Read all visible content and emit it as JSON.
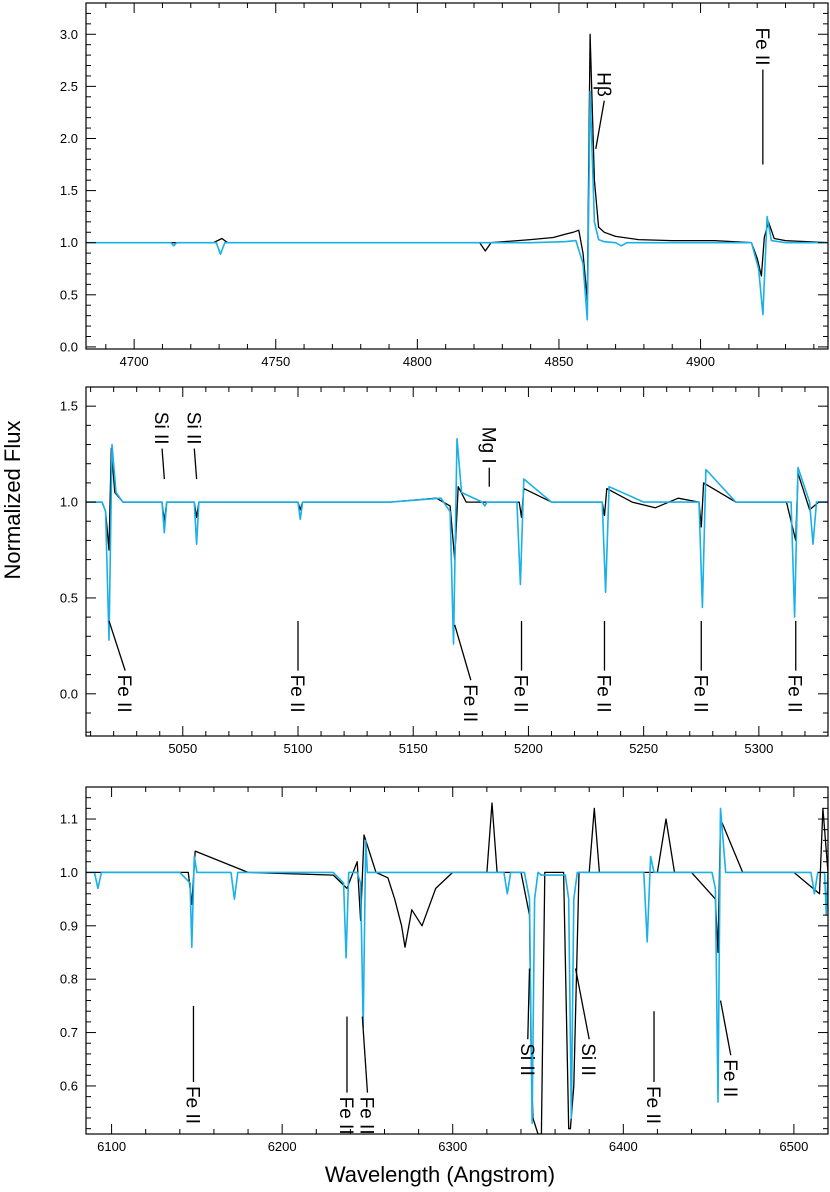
{
  "figure": {
    "ylabel": "Normalized Flux",
    "xlabel": "Wavelength (Angstrom)",
    "colors": {
      "observed": "#000000",
      "model": "#1ab0e8",
      "axes": "#000000"
    }
  },
  "chart_data": [
    {
      "type": "line",
      "panel": "top",
      "xlim": [
        4683,
        4945
      ],
      "ylim": [
        -0.02,
        3.3
      ],
      "x_ticks": [
        4700,
        4750,
        4800,
        4850,
        4900
      ],
      "y_ticks": [
        0.0,
        0.5,
        1.0,
        1.5,
        2.0,
        2.5,
        3.0
      ],
      "y_tick_labels": [
        "0.0",
        "0.5",
        "1.0",
        "1.5",
        "2.0",
        "2.5",
        "3.0"
      ],
      "series": [
        {
          "role": "observed",
          "color": "#000000",
          "x": [
            4683,
            4700,
            4728,
            4731,
            4733,
            4760,
            4800,
            4822,
            4824,
            4826,
            4840,
            4848,
            4852,
            4855,
            4857,
            4858.5,
            4860,
            4861,
            4862.5,
            4864,
            4866,
            4870,
            4878,
            4890,
            4905,
            4918,
            4920,
            4921.5,
            4922.5,
            4924,
            4926,
            4930,
            4945
          ],
          "y": [
            1.0,
            1.0,
            1.0,
            1.04,
            1.0,
            1.0,
            1.0,
            1.0,
            0.92,
            1.0,
            1.03,
            1.05,
            1.08,
            1.1,
            1.12,
            0.9,
            0.45,
            3.0,
            1.6,
            1.15,
            1.1,
            1.06,
            1.03,
            1.02,
            1.02,
            1.0,
            0.85,
            0.68,
            1.05,
            1.2,
            1.04,
            1.02,
            1.0
          ]
        },
        {
          "role": "model",
          "color": "#1ab0e8",
          "x": [
            4683,
            4700,
            4713,
            4714,
            4715,
            4729,
            4730.5,
            4732,
            4760,
            4800,
            4840,
            4852,
            4856,
            4858.5,
            4860,
            4861,
            4862.5,
            4864,
            4866,
            4870,
            4872,
            4874,
            4890,
            4918,
            4920.5,
            4922,
            4923.5,
            4925,
            4930,
            4945
          ],
          "y": [
            1.0,
            1.0,
            1.0,
            0.97,
            1.0,
            1.0,
            0.89,
            1.0,
            1.0,
            1.0,
            1.0,
            1.01,
            1.02,
            0.8,
            0.26,
            2.45,
            1.2,
            1.03,
            1.01,
            1.0,
            0.97,
            1.0,
            1.0,
            1.0,
            0.75,
            0.31,
            1.25,
            1.02,
            1.0,
            1.0
          ]
        }
      ],
      "annotations": [
        {
          "label": "Hβ",
          "x": 4866,
          "y": 2.4,
          "leader_to": [
            4863,
            1.9
          ]
        },
        {
          "label": "Fe II",
          "x": 4922,
          "y": 2.7,
          "leader_to": [
            4922,
            1.75
          ]
        }
      ]
    },
    {
      "type": "line",
      "panel": "middle",
      "xlim": [
        5008,
        5330
      ],
      "ylim": [
        -0.22,
        1.6
      ],
      "x_ticks": [
        5050,
        5100,
        5150,
        5200,
        5250,
        5300
      ],
      "y_ticks": [
        0.0,
        0.5,
        1.0,
        1.5
      ],
      "y_tick_labels": [
        "0.0",
        "0.5",
        "1.0",
        "1.5"
      ],
      "series": [
        {
          "role": "observed",
          "color": "#000000",
          "x": [
            5008,
            5015,
            5016.5,
            5018,
            5019,
            5020.5,
            5024,
            5035,
            5041,
            5042,
            5043,
            5055,
            5056,
            5057,
            5080,
            5100,
            5101,
            5102,
            5140,
            5160,
            5166,
            5168,
            5169.5,
            5173,
            5190,
            5196,
            5197,
            5198,
            5210,
            5232,
            5233,
            5234,
            5245,
            5255,
            5265,
            5274,
            5275,
            5276,
            5290,
            5312,
            5316,
            5317,
            5322,
            5324,
            5326,
            5330
          ],
          "y": [
            1.0,
            1.0,
            0.95,
            0.75,
            1.28,
            1.05,
            1.0,
            1.0,
            1.0,
            0.9,
            1.0,
            1.0,
            0.92,
            1.0,
            1.0,
            1.0,
            0.96,
            1.0,
            1.0,
            1.02,
            0.98,
            0.7,
            1.08,
            1.0,
            1.0,
            1.0,
            0.92,
            1.07,
            1.0,
            1.0,
            0.93,
            1.07,
            1.0,
            0.97,
            1.02,
            1.0,
            0.87,
            1.1,
            1.0,
            1.0,
            0.8,
            1.15,
            0.96,
            0.98,
            1.0,
            1.0
          ]
        },
        {
          "role": "model",
          "color": "#1ab0e8",
          "x": [
            5008,
            5015,
            5016.5,
            5018,
            5019.3,
            5021,
            5024,
            5035,
            5041,
            5042,
            5043,
            5055,
            5056,
            5057,
            5080,
            5100,
            5101,
            5102,
            5140,
            5162,
            5166,
            5167.5,
            5169,
            5171,
            5180,
            5181,
            5182,
            5195,
            5196.5,
            5198,
            5210,
            5232,
            5233.5,
            5235,
            5250,
            5265,
            5274,
            5275.5,
            5277,
            5290,
            5314,
            5315.5,
            5317,
            5322,
            5323.5,
            5325,
            5330
          ],
          "y": [
            1.0,
            1.0,
            0.95,
            0.28,
            1.3,
            1.05,
            1.0,
            1.0,
            1.0,
            0.84,
            1.0,
            1.0,
            0.78,
            1.0,
            1.0,
            1.0,
            0.91,
            1.0,
            1.0,
            1.02,
            0.95,
            0.26,
            1.33,
            1.05,
            1.0,
            0.98,
            1.0,
            1.0,
            0.57,
            1.12,
            1.0,
            1.0,
            0.53,
            1.08,
            1.0,
            1.0,
            1.0,
            0.45,
            1.17,
            1.0,
            1.0,
            0.4,
            1.18,
            1.0,
            0.78,
            1.0,
            1.0
          ]
        }
      ],
      "annotations": [
        {
          "label": "Si II",
          "x": 5041,
          "y": 1.3,
          "leader_to": [
            5042,
            1.12
          ]
        },
        {
          "label": "Si II",
          "x": 5055,
          "y": 1.3,
          "leader_to": [
            5056,
            1.12
          ]
        },
        {
          "label": "Mg I",
          "x": 5183,
          "y": 1.2,
          "leader_to": [
            5183,
            1.08
          ]
        },
        {
          "label": "Fe II",
          "x": 5025,
          "y": 0.1,
          "leader_to": [
            5018,
            0.38
          ]
        },
        {
          "label": "Fe II",
          "x": 5100,
          "y": 0.1,
          "leader_to": [
            5100,
            0.38
          ]
        },
        {
          "label": "Fe II",
          "x": 5175,
          "y": 0.05,
          "leader_to": [
            5168,
            0.36
          ]
        },
        {
          "label": "Fe II",
          "x": 5197,
          "y": 0.1,
          "leader_to": [
            5197,
            0.38
          ]
        },
        {
          "label": "Fe II",
          "x": 5233,
          "y": 0.1,
          "leader_to": [
            5233,
            0.38
          ]
        },
        {
          "label": "Fe II",
          "x": 5275,
          "y": 0.1,
          "leader_to": [
            5275,
            0.38
          ]
        },
        {
          "label": "Fe II",
          "x": 5316,
          "y": 0.1,
          "leader_to": [
            5316,
            0.38
          ]
        }
      ]
    },
    {
      "type": "line",
      "panel": "bottom",
      "xlim": [
        6085,
        6520
      ],
      "ylim": [
        0.51,
        1.16
      ],
      "x_ticks": [
        6100,
        6200,
        6300,
        6400,
        6500
      ],
      "y_ticks": [
        0.6,
        0.7,
        0.8,
        0.9,
        1.0,
        1.1
      ],
      "y_tick_labels": [
        "0.6",
        "0.7",
        "0.8",
        "0.9",
        "1.0",
        "1.1"
      ],
      "series": [
        {
          "role": "observed",
          "color": "#000000",
          "x": [
            6085,
            6120,
            6145,
            6147,
            6149,
            6180,
            6230,
            6238,
            6244,
            6246,
            6248,
            6255,
            6262,
            6266,
            6270,
            6272,
            6276,
            6282,
            6290,
            6300,
            6320,
            6323,
            6326,
            6340,
            6345,
            6346,
            6347,
            6350,
            6352,
            6354,
            6358,
            6365,
            6368,
            6369,
            6371,
            6374,
            6380,
            6383,
            6386,
            6400,
            6420,
            6425,
            6430,
            6440,
            6454,
            6455.5,
            6457,
            6470,
            6500,
            6515,
            6517,
            6520
          ],
          "y": [
            1.0,
            1.0,
            1.0,
            0.94,
            1.04,
            1.0,
            0.995,
            0.97,
            1.02,
            0.91,
            1.07,
            1.0,
            0.99,
            0.95,
            0.9,
            0.86,
            0.93,
            0.9,
            0.97,
            1.0,
            1.0,
            1.13,
            1.0,
            1.0,
            0.92,
            0.65,
            0.54,
            0.51,
            0.51,
            1.0,
            1.0,
            1.0,
            0.52,
            0.52,
            0.6,
            1.0,
            1.0,
            1.12,
            1.0,
            1.0,
            1.0,
            1.1,
            1.0,
            1.0,
            0.95,
            0.85,
            1.1,
            1.0,
            1.0,
            0.96,
            1.12,
            1.0
          ]
        },
        {
          "role": "model",
          "color": "#1ab0e8",
          "x": [
            6085,
            6090,
            6092,
            6094,
            6140,
            6146,
            6147,
            6148.5,
            6150,
            6170,
            6172,
            6174,
            6230,
            6236,
            6237.5,
            6239,
            6244,
            6246,
            6247.5,
            6249,
            6250,
            6260,
            6300,
            6330,
            6332,
            6334,
            6342,
            6345,
            6346.5,
            6348,
            6350,
            6352,
            6360,
            6366,
            6368,
            6369.5,
            6371,
            6373,
            6380,
            6412,
            6414,
            6416,
            6418,
            6440,
            6452,
            6454,
            6455.5,
            6457,
            6460,
            6500,
            6510,
            6512,
            6514,
            6518,
            6519,
            6520
          ],
          "y": [
            1.0,
            1.0,
            0.97,
            1.0,
            1.0,
            0.98,
            0.86,
            1.03,
            1.0,
            1.0,
            0.95,
            1.0,
            1.0,
            0.98,
            0.84,
            1.0,
            1.0,
            0.98,
            0.71,
            1.06,
            1.0,
            1.0,
            1.0,
            1.0,
            0.96,
            1.0,
            1.0,
            0.95,
            0.53,
            0.95,
            1.0,
            0.995,
            0.995,
            0.995,
            0.95,
            0.54,
            0.95,
            1.0,
            1.0,
            1.0,
            0.87,
            1.03,
            1.0,
            1.0,
            1.0,
            0.97,
            0.57,
            1.12,
            1.0,
            1.0,
            1.0,
            0.96,
            1.0,
            1.0,
            0.92,
            1.0
          ]
        }
      ],
      "annotations": [
        {
          "label": "Fe II",
          "x": 6148,
          "y": 0.6,
          "leader_to": [
            6148,
            0.75
          ]
        },
        {
          "label": "Fe II",
          "x": 6238,
          "y": 0.58,
          "leader_to": [
            6238,
            0.73
          ]
        },
        {
          "label": "Fe II",
          "x": 6250,
          "y": 0.58,
          "leader_to": [
            6247,
            0.73
          ]
        },
        {
          "label": "Si II",
          "x": 6344,
          "y": 0.68,
          "leader_to": [
            6345,
            0.82
          ]
        },
        {
          "label": "Si II",
          "x": 6380,
          "y": 0.68,
          "leader_to": [
            6372,
            0.82
          ]
        },
        {
          "label": "Fe II",
          "x": 6418,
          "y": 0.6,
          "leader_to": [
            6418,
            0.74
          ]
        },
        {
          "label": "Fe II",
          "x": 6463,
          "y": 0.65,
          "leader_to": [
            6457,
            0.76
          ]
        }
      ]
    }
  ]
}
